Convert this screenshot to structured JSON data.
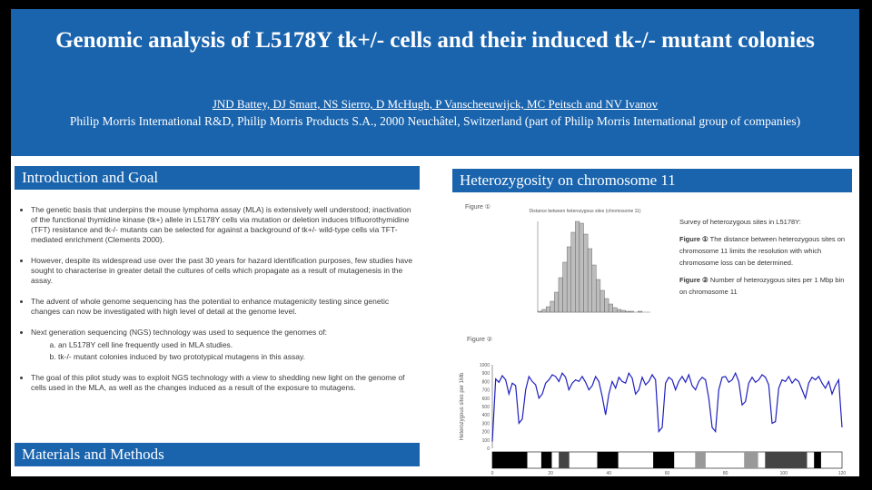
{
  "header": {
    "title": "Genomic analysis of L5178Y tk+/- cells and their induced tk-/- mutant colonies",
    "authors": "JND Battey, DJ Smart, NS Sierro, D McHugh, P Vanscheeuwijck, MC Peitsch and NV Ivanov",
    "affiliation": "Philip Morris International R&D, Philip Morris Products S.A., 2000 Neuchâtel, Switzerland (part of Philip Morris International group of companies)"
  },
  "sections": {
    "intro_title": "Introduction and Goal",
    "methods_title": "Materials and Methods",
    "hetero_title": "Heterozygosity on chromosome 11"
  },
  "intro": {
    "bullets": [
      "The genetic basis that underpins the mouse lymphoma assay (MLA) is extensively well understood; inactivation of the functional thymidine kinase (tk+) allele in L5178Y cells via mutation or deletion induces trifluorothymidine (TFT) resistance and tk-/- mutants can be selected for against a background of tk+/- wild-type cells via TFT-mediated enrichment (Clements 2000).",
      "However, despite its widespread use over the past 30 years for hazard identification purposes, few studies have sought to characterise in greater detail the cultures of cells which propagate as a result of mutagenesis in the assay.",
      "The advent of whole genome sequencing has the potential to enhance mutagenicity testing since genetic changes can now be investigated with high level of detail at the genome level.",
      "Next generation sequencing (NGS) technology was used to sequence the genomes of:",
      "The goal of this pilot study was to exploit NGS technology with a view to shedding new light on the genome of cells used in the MLA, as well as the changes induced as a result of the exposure to mutagens."
    ],
    "subitems": [
      "an L5178Y cell line frequently used in MLA studies.",
      "tk-/- mutant colonies induced by two prototypical mutagens in this assay."
    ]
  },
  "figures": {
    "fig1_label": "Figure ①",
    "fig2_label": "Figure ②",
    "fig1_title": "Distance between heterozygous sites (chromosome 11)"
  },
  "caption": {
    "lead": "Survey of heterozygous sites in L5178Y:",
    "fig1_ref": "Figure ①",
    "fig1_text": " The distance between heterozygous sites on chromosome 11 limits the resolution with which chromosome loss can be determined.",
    "fig2_ref": "Figure ②",
    "fig2_text": " Number of heterozygous sites per 1 Mbp bin on chromosome 11"
  },
  "chart_data": [
    {
      "type": "bar",
      "title": "Distance between heterozygous sites (chromosome 11)",
      "values": [
        1,
        3,
        6,
        12,
        22,
        38,
        55,
        72,
        88,
        100,
        98,
        86,
        70,
        52,
        36,
        24,
        15,
        9,
        5,
        3,
        2,
        1,
        1,
        0,
        1,
        0,
        0
      ],
      "ylim": [
        0,
        100
      ]
    },
    {
      "type": "line",
      "ylabel": "Heterozygous sites per 1Mb",
      "y_ticks": [
        "1000",
        "900",
        "800",
        "700",
        "600",
        "500",
        "400",
        "300",
        "200",
        "100",
        "0"
      ],
      "ylim": [
        0,
        1000
      ],
      "x_ticks": [
        "0",
        "20",
        "40",
        "60",
        "80",
        "100",
        "120"
      ],
      "values": [
        80,
        830,
        790,
        870,
        820,
        650,
        780,
        750,
        300,
        350,
        700,
        860,
        800,
        760,
        600,
        650,
        780,
        820,
        880,
        860,
        800,
        900,
        850,
        700,
        780,
        820,
        800,
        860,
        790,
        700,
        750,
        860,
        800,
        620,
        400,
        650,
        800,
        720,
        850,
        800,
        780,
        900,
        840,
        650,
        700,
        850,
        760,
        800,
        880,
        820,
        200,
        250,
        780,
        850,
        820,
        700,
        800,
        860,
        790,
        880,
        750,
        700,
        800,
        850,
        820,
        600,
        250,
        200,
        700,
        850,
        860,
        790,
        820,
        900,
        800,
        520,
        560,
        780,
        850,
        790,
        820,
        880,
        850,
        760,
        300,
        320,
        720,
        820,
        800,
        860,
        780,
        830,
        800,
        700,
        600,
        780,
        850,
        820,
        860,
        780,
        720,
        800,
        650,
        750,
        820,
        250
      ]
    }
  ]
}
